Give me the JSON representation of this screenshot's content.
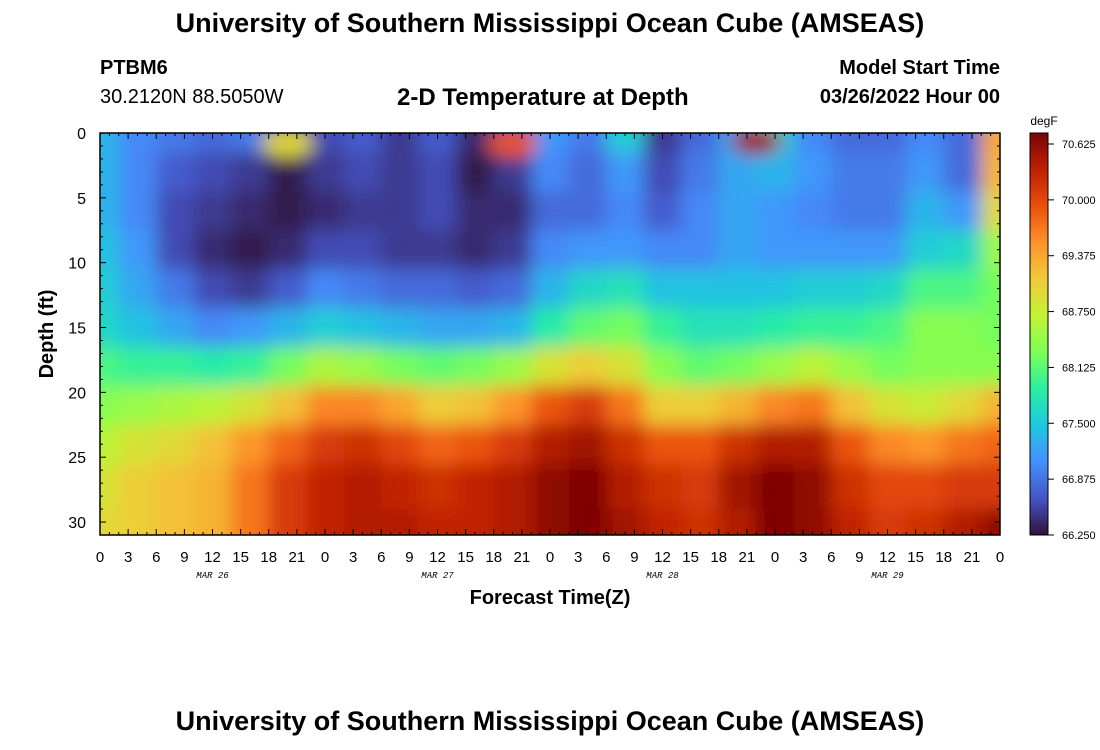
{
  "header": {
    "title": "University of Southern Mississippi Ocean Cube (AMSEAS)",
    "station": "PTBM6",
    "coords": "30.2120N  88.5050W",
    "plot_title": "2-D Temperature at Depth",
    "start_label": "Model Start Time",
    "start_value": "03/26/2022 Hour 00"
  },
  "footer": {
    "title": "University of Southern Mississippi Ocean Cube (AMSEAS)"
  },
  "chart_data": {
    "type": "heatmap",
    "title": "2-D Temperature at Depth",
    "xlabel": "Forecast Time(Z)",
    "ylabel": "Depth (ft)",
    "x_tick_labels": [
      "0",
      "3",
      "6",
      "9",
      "12",
      "15",
      "18",
      "21",
      "0",
      "3",
      "6",
      "9",
      "12",
      "15",
      "18",
      "21",
      "0",
      "3",
      "6",
      "9",
      "12",
      "15",
      "18",
      "21",
      "0",
      "3",
      "6",
      "9",
      "12",
      "15",
      "18",
      "21",
      "0"
    ],
    "date_labels": [
      {
        "hour": 12,
        "label": "MAR 26"
      },
      {
        "hour": 36,
        "label": "MAR 27"
      },
      {
        "hour": 60,
        "label": "MAR 28"
      },
      {
        "hour": 84,
        "label": "MAR 29"
      }
    ],
    "xlim": [
      0,
      96
    ],
    "y_ticks": [
      0,
      5,
      10,
      15,
      20,
      25,
      30
    ],
    "ylim": [
      0,
      31
    ],
    "colorbar": {
      "unit": "degF",
      "ticks": [
        "70.625",
        "70.000",
        "69.375",
        "68.750",
        "68.125",
        "67.500",
        "66.875",
        "66.250"
      ],
      "range": [
        66.25,
        70.625
      ],
      "colors": [
        "#30123b",
        "#4454c4",
        "#4490fe",
        "#1fc8de",
        "#29efa2",
        "#7dff56",
        "#c1f334",
        "#f1ca3a",
        "#fe922a",
        "#ea4f0d",
        "#be2102",
        "#7a0403"
      ]
    },
    "grid_hours": [
      0,
      4,
      8,
      12,
      16,
      20,
      24,
      28,
      32,
      36,
      40,
      44,
      48,
      52,
      56,
      60,
      64,
      68,
      72,
      76,
      80,
      84,
      88,
      92,
      96
    ],
    "grid_depths": [
      0,
      3,
      6,
      9,
      12,
      15,
      18,
      21,
      24,
      27,
      31
    ],
    "values": [
      [
        67.3,
        67.0,
        66.9,
        66.8,
        66.9,
        66.4,
        66.6,
        66.7,
        66.5,
        66.7,
        66.4,
        66.6,
        67.1,
        66.9,
        67.5,
        66.5,
        66.8,
        67.2,
        67.5,
        67.0,
        66.8,
        66.8,
        67.0,
        66.8,
        69.3
      ],
      [
        67.3,
        67.0,
        66.7,
        66.6,
        66.5,
        66.3,
        66.5,
        66.6,
        66.5,
        66.6,
        66.3,
        66.5,
        67.0,
        66.8,
        67.1,
        66.6,
        66.9,
        67.2,
        67.3,
        67.1,
        66.9,
        66.9,
        67.1,
        66.8,
        69.2
      ],
      [
        67.3,
        67.0,
        66.6,
        66.5,
        66.4,
        66.3,
        66.4,
        66.5,
        66.5,
        66.6,
        66.4,
        66.4,
        66.8,
        66.8,
        67.0,
        66.7,
        67.0,
        67.2,
        67.1,
        67.0,
        66.9,
        66.9,
        67.3,
        67.1,
        68.9
      ],
      [
        67.4,
        67.1,
        66.6,
        66.4,
        66.3,
        66.4,
        66.6,
        66.6,
        66.5,
        66.5,
        66.4,
        66.5,
        67.0,
        67.1,
        67.1,
        67.0,
        67.0,
        67.2,
        67.1,
        67.1,
        67.1,
        67.1,
        67.5,
        67.6,
        68.4
      ],
      [
        67.5,
        67.2,
        66.9,
        66.6,
        66.5,
        66.7,
        67.0,
        66.9,
        66.8,
        66.8,
        66.7,
        66.8,
        67.3,
        67.6,
        67.7,
        67.4,
        67.4,
        67.4,
        67.4,
        67.5,
        67.5,
        67.6,
        68.0,
        68.0,
        68.2
      ],
      [
        67.6,
        67.4,
        67.2,
        67.0,
        67.1,
        67.3,
        67.5,
        67.4,
        67.3,
        67.2,
        67.2,
        67.3,
        67.8,
        68.1,
        68.2,
        67.9,
        67.7,
        67.7,
        67.8,
        67.9,
        67.9,
        68.0,
        68.3,
        68.3,
        68.2
      ],
      [
        68.0,
        67.9,
        67.9,
        67.8,
        67.9,
        68.2,
        68.5,
        68.4,
        68.2,
        68.1,
        68.2,
        68.4,
        68.8,
        69.0,
        68.8,
        68.3,
        68.1,
        68.2,
        68.4,
        68.6,
        68.4,
        68.2,
        68.3,
        68.3,
        68.3
      ],
      [
        68.3,
        68.4,
        68.5,
        68.6,
        68.8,
        69.1,
        69.5,
        69.5,
        69.3,
        69.0,
        69.1,
        69.4,
        69.8,
        70.0,
        69.6,
        69.0,
        69.0,
        69.2,
        69.5,
        69.6,
        69.1,
        68.8,
        68.7,
        68.9,
        69.2
      ],
      [
        68.6,
        68.8,
        68.9,
        69.1,
        69.4,
        69.7,
        70.0,
        70.1,
        69.9,
        69.7,
        69.8,
        70.0,
        70.3,
        70.4,
        70.1,
        69.8,
        69.8,
        70.1,
        70.3,
        70.3,
        69.8,
        69.5,
        69.4,
        69.6,
        69.7
      ],
      [
        68.8,
        69.0,
        69.1,
        69.2,
        69.6,
        70.0,
        70.2,
        70.3,
        70.2,
        70.1,
        70.2,
        70.3,
        70.5,
        70.6,
        70.3,
        70.1,
        70.0,
        70.4,
        70.6,
        70.5,
        70.1,
        69.9,
        69.9,
        70.0,
        70.0
      ],
      [
        68.9,
        69.0,
        69.1,
        69.2,
        69.6,
        70.0,
        70.2,
        70.3,
        70.3,
        70.2,
        70.2,
        70.3,
        70.5,
        70.6,
        70.4,
        70.2,
        70.1,
        70.3,
        70.6,
        70.5,
        70.2,
        70.0,
        70.1,
        70.3,
        70.5
      ]
    ],
    "hotspots": [
      {
        "hour": 20,
        "depth": 0.8,
        "value": 68.9
      },
      {
        "hour": 44,
        "depth": 0.8,
        "value": 69.8
      },
      {
        "hour": 70,
        "depth": 0.6,
        "value": 70.4
      }
    ]
  }
}
